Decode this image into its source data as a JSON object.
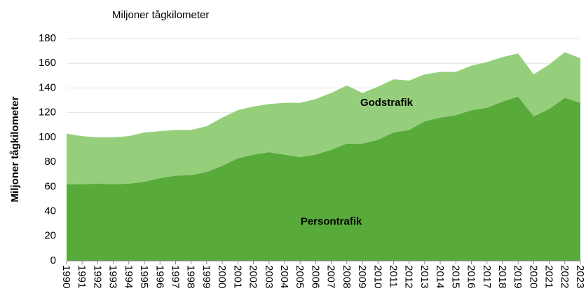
{
  "chart_data": {
    "type": "stacked_area",
    "title": "Miljoner tågkilometer",
    "y_label": "Miljoner tågkilometer",
    "categories": [
      "1990",
      "1991",
      "1992",
      "1993",
      "1994",
      "1995",
      "1996",
      "1997",
      "1998",
      "1999",
      "2000",
      "2001",
      "2002",
      "2003",
      "2004",
      "2005",
      "2006",
      "2007",
      "2008",
      "2009",
      "2010",
      "2011",
      "2012",
      "2013",
      "2014",
      "2015",
      "2016",
      "2017",
      "2018",
      "2019",
      "2020",
      "2021",
      "2022",
      "2023"
    ],
    "series": [
      {
        "name": "Persontrafik",
        "color": "#58aa3b",
        "values": [
          62,
          62,
          62.5,
          62,
          62.5,
          64,
          67,
          69,
          69.5,
          72,
          77,
          83,
          86,
          88,
          86,
          84,
          86,
          90,
          95,
          95,
          98,
          104,
          106,
          113,
          116,
          118,
          122,
          124,
          129,
          133,
          117,
          123,
          132,
          128
        ]
      },
      {
        "name": "Godstrafik",
        "color": "#95cf7c",
        "values": [
          41,
          39,
          37.5,
          38,
          38.5,
          40,
          38,
          37,
          36.5,
          37,
          39,
          39,
          39,
          39,
          42,
          44,
          45,
          46,
          47,
          41,
          43,
          43,
          40,
          38,
          37,
          35,
          36,
          37,
          36,
          35,
          34,
          36,
          37,
          36
        ]
      }
    ],
    "ylim": [
      0,
      180
    ],
    "yticks": [
      0,
      20,
      40,
      60,
      80,
      100,
      120,
      140,
      160,
      180
    ],
    "grid": true
  }
}
